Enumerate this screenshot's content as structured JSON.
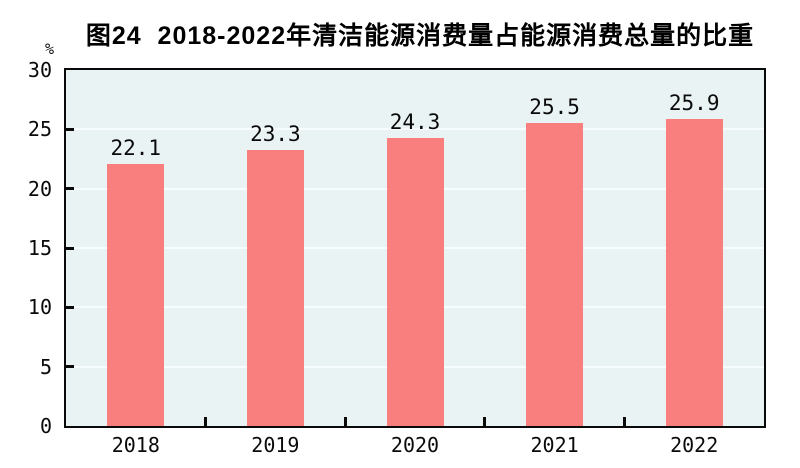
{
  "figure": {
    "title": "图24  2018-2022年清洁能源消费量占能源消费总量的比重",
    "unit_label": "%"
  },
  "colors": {
    "bar": "#f97f7f",
    "plot_background": "#eaf3f4",
    "gridline": "#f7fcfc",
    "axis": "#0a0a0a",
    "text": "#0a0a0a",
    "page_background": "#ffffff"
  },
  "chart_data": {
    "type": "bar",
    "title": "图24  2018-2022年清洁能源消费量占能源消费总量的比重",
    "categories": [
      "2018",
      "2019",
      "2020",
      "2021",
      "2022"
    ],
    "values": [
      22.1,
      23.3,
      24.3,
      25.5,
      25.9
    ],
    "value_labels": [
      "22.1",
      "23.3",
      "24.3",
      "25.5",
      "25.9"
    ],
    "xlabel": "",
    "ylabel": "%",
    "ylim": [
      0,
      30
    ],
    "yticks": [
      0,
      5,
      10,
      15,
      20,
      25,
      30
    ],
    "grid": true,
    "legend_position": "none",
    "bar_color": "#f97f7f"
  }
}
